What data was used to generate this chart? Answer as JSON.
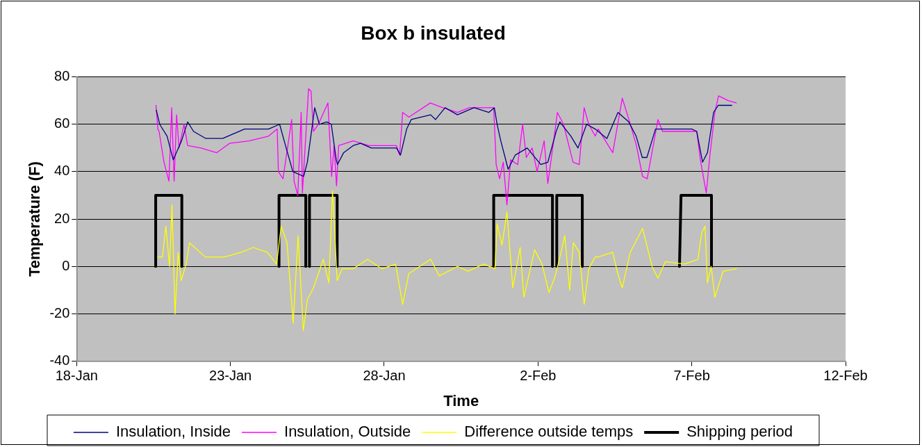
{
  "chart_data": {
    "type": "line",
    "title": "Box b insulated",
    "xlabel": "Time",
    "ylabel": "Temperature (F)",
    "xlim": [
      "--01-18",
      "--02-12"
    ],
    "xticks": [
      {
        "value": "--01-18",
        "label": "18-Jan"
      },
      {
        "value": "--01-23",
        "label": "23-Jan"
      },
      {
        "value": "--01-28",
        "label": "28-Jan"
      },
      {
        "value": "--02-02",
        "label": "2-Feb"
      },
      {
        "value": "--02-07",
        "label": "7-Feb"
      },
      {
        "value": "--02-12",
        "label": "12-Feb"
      }
    ],
    "ylim": [
      -40,
      80
    ],
    "yticks": [
      -40,
      -20,
      0,
      20,
      40,
      60,
      80
    ],
    "grid": "y",
    "legend": "bottom",
    "marker": "none",
    "series": [
      {
        "name": "Insulation, Inside",
        "color": "#000080",
        "x": [
          "--01-20T14:10",
          "--01-20T16:48",
          "--01-20T22:34",
          "--01-21T03:22",
          "--01-21T09:50",
          "--01-21T14:38",
          "--01-21T19:12",
          "--01-22T04:48",
          "--01-22T18:00",
          "--01-23T11:02",
          "--01-24T05:46",
          "--01-24T14:24",
          "--01-24T18:58",
          "--01-25T00:43",
          "--01-25T09:07",
          "--01-25T12:00",
          "--01-25T17:46",
          "--01-25T21:22",
          "--01-26T03:07",
          "--01-26T06:43",
          "--01-26T10:34",
          "--01-26T11:31",
          "--01-26T16:19",
          "--01-26T23:46",
          "--01-27T05:31",
          "--01-27T13:55",
          "--01-28T09:36",
          "--01-28T12:43",
          "--01-28T17:31",
          "--01-28T21:07",
          "--01-29T12:14",
          "--01-29T16:05",
          "--01-29T23:31",
          "--01-30T09:07",
          "--01-30T22:05",
          "--01-31T09:36",
          "--01-31T13:55",
          "--01-31T16:05",
          "--01-31T18:58",
          "--02-01T00:43",
          "--02-01T06:14",
          "--02-01T15:36",
          "--02-02T02:10",
          "--02-02T07:41",
          "--02-02T14:10",
          "--02-02T17:02",
          "--02-03T01:41",
          "--02-03T07:12",
          "--02-03T13:55",
          "--02-03T20:38",
          "--02-04T05:46",
          "--02-04T14:24",
          "--02-04T22:48",
          "--02-05T04:34",
          "--02-05T09:22",
          "--02-05T12:58",
          "--02-05T19:41",
          "--02-07T00:00",
          "--02-07T03:50",
          "--02-07T08:24",
          "--02-07T12:14",
          "--02-07T17:02",
          "--02-07T20:38",
          "--02-08T07:12"
        ],
        "values": [
          66,
          60,
          55,
          45,
          53,
          61,
          57,
          54,
          54,
          58,
          58,
          60,
          51,
          40,
          38,
          44,
          67,
          60,
          61,
          60,
          45,
          43,
          48,
          51,
          52,
          50,
          50,
          47,
          58,
          62,
          64,
          62,
          67,
          64,
          67,
          65,
          67,
          60,
          53,
          41,
          47,
          50,
          43,
          44,
          57,
          61,
          55,
          50,
          60,
          58,
          54,
          65,
          61,
          55,
          46,
          46,
          58,
          58,
          57,
          44,
          48,
          65,
          68,
          68
        ]
      },
      {
        "name": "Insulation, Outside",
        "color": "#ff00ff",
        "x": [
          "--01-20T13:55",
          "--01-20T15:22",
          "--01-20T16:19",
          "--01-20T20:10",
          "--01-21T00:00",
          "--01-21T02:10",
          "--01-21T04:05",
          "--01-21T06:00",
          "--01-21T07:55",
          "--01-21T11:46",
          "--01-21T14:38",
          "--01-22T00:58",
          "--01-22T13:12",
          "--01-22T23:31",
          "--01-23T14:38",
          "--01-24T05:46",
          "--01-24T12:29",
          "--01-24T13:26",
          "--01-24T17:02",
          "--01-24T23:46",
          "--01-25T01:41",
          "--01-25T04:34",
          "--01-25T07:12",
          "--01-25T08:10",
          "--01-25T12:58",
          "--01-25T14:53",
          "--01-25T16:48",
          "--01-25T20:38",
          "--01-26T04:05",
          "--01-26T06:58",
          "--01-26T08:53",
          "--01-26T10:48",
          "--01-26T12:29",
          "--01-26T23:46",
          "--01-27T12:00",
          "--01-28T09:36",
          "--01-28T12:00",
          "--01-28T14:24",
          "--01-28T19:12",
          "--01-29T12:00",
          "--01-29T21:36",
          "--01-30T09:07",
          "--01-30T18:29",
          "--01-31T13:26",
          "--01-31T15:22",
          "--01-31T18:00",
          "--01-31T20:53",
          "--01-31T23:46",
          "--02-01T02:38",
          "--02-01T08:10",
          "--02-01T12:00",
          "--02-01T14:53",
          "--02-01T19:26",
          "--02-01T23:17",
          "--02-02T04:48",
          "--02-02T07:41",
          "--02-02T12:14",
          "--02-02T15:07",
          "--02-02T19:55",
          "--02-03T03:22",
          "--02-03T08:10",
          "--02-03T12:00",
          "--02-03T15:36",
          "--02-03T20:38",
          "--02-03T23:02",
          "--02-04T10:19",
          "--02-04T17:46",
          "--02-04T23:31",
          "--02-05T04:48",
          "--02-05T09:36",
          "--02-05T13:12",
          "--02-05T21:36",
          "--02-06T01:12",
          "--02-07T03:50",
          "--02-07T06:43",
          "--02-07T11:17",
          "--02-07T14:10",
          "--02-07T18:00",
          "--02-07T20:53",
          "--02-08T04:19",
          "--02-08T10:48"
        ],
        "values": [
          68,
          58,
          57,
          44,
          36,
          67,
          36,
          64,
          50,
          60,
          51,
          50,
          48,
          52,
          53,
          55,
          58,
          40,
          37,
          62,
          36,
          30,
          65,
          31,
          75,
          74,
          57,
          60,
          69,
          38,
          51,
          34,
          51,
          53,
          51,
          51,
          47,
          65,
          63,
          69,
          67,
          65,
          67,
          67,
          43,
          37,
          44,
          26,
          45,
          43,
          60,
          46,
          50,
          40,
          53,
          35,
          53,
          65,
          60,
          44,
          43,
          67,
          60,
          55,
          58,
          48,
          71,
          61,
          51,
          38,
          37,
          62,
          57,
          57,
          45,
          31,
          47,
          65,
          72,
          70,
          69
        ]
      },
      {
        "name": "Difference outside temps",
        "color": "#ffff00",
        "x": [
          "--01-20T15:22",
          "--01-20T18:58",
          "--01-20T21:36",
          "--01-21T00:29",
          "--01-21T02:24",
          "--01-21T04:48",
          "--01-21T07:12",
          "--01-21T09:36",
          "--01-21T13:26",
          "--01-21T16:05",
          "--01-22T04:19",
          "--01-22T19:26",
          "--01-23T08:24",
          "--01-23T17:46",
          "--01-24T04:48",
          "--01-24T12:00",
          "--01-24T15:36",
          "--01-24T20:10",
          "--01-25T00:58",
          "--01-25T04:48",
          "--01-25T08:53",
          "--01-25T12:00",
          "--01-25T16:48",
          "--01-26T00:29",
          "--01-26T04:48",
          "--01-26T07:41",
          "--01-26T11:17",
          "--01-26T15:07",
          "--01-26T23:46",
          "--01-27T11:02",
          "--01-27T22:19",
          "--01-28T08:53",
          "--01-28T14:24",
          "--01-28T19:12",
          "--01-29T12:14",
          "--01-29T18:58",
          "--01-30T09:07",
          "--01-30T17:31",
          "--01-31T05:46",
          "--01-31T14:24",
          "--01-31T16:05",
          "--01-31T19:55",
          "--01-31T23:46",
          "--02-01T04:19",
          "--02-01T10:05",
          "--02-01T12:58",
          "--02-01T21:22",
          "--02-02T03:07",
          "--02-02T08:38",
          "--02-02T13:26",
          "--02-02T18:00",
          "--02-02T20:53",
          "--02-03T00:43",
          "--02-03T03:36",
          "--02-03T08:10",
          "--02-03T12:00",
          "--02-03T15:36",
          "--02-03T20:38",
          "--02-03T23:02",
          "--02-04T10:19",
          "--02-04T14:10",
          "--02-04T17:46",
          "--02-05T00:00",
          "--02-05T09:36",
          "--02-05T17:02",
          "--02-05T21:36",
          "--02-06T03:22",
          "--02-06T18:29",
          "--02-07T04:48",
          "--02-07T07:41",
          "--02-07T10:19",
          "--02-07T12:14",
          "--02-07T15:07",
          "--02-07T18:00",
          "--02-08T00:29",
          "--02-08T10:48"
        ],
        "values": [
          4,
          4,
          17,
          0,
          26,
          -20,
          6,
          -6,
          1,
          10,
          4,
          4,
          6,
          8,
          6,
          1,
          17,
          10,
          -24,
          13,
          -27,
          -14,
          -9,
          3,
          -7,
          32,
          -6,
          -1,
          -1,
          3,
          -1,
          1,
          -16,
          -3,
          3,
          -4,
          0,
          -2,
          1,
          -1,
          18,
          9,
          23,
          -9,
          8,
          -13,
          7,
          1,
          -11,
          -4,
          6,
          13,
          -10,
          10,
          6,
          -16,
          -1,
          4,
          4,
          6,
          -3,
          -9,
          6,
          16,
          0,
          -5,
          2,
          1,
          3,
          14,
          17,
          -7,
          0,
          -13,
          -2,
          -1
        ]
      },
      {
        "name": "Shipping period",
        "color": "#000000",
        "x": [
          "--01-20T13:41",
          "--01-20T13:41",
          "--01-21T10:05",
          "--01-21T10:05",
          "--01-23T00:00",
          "--01-24T13:55",
          "--01-24T13:55",
          "--01-25T10:48",
          "--01-25T10:48",
          "--01-25T12:00",
          "--01-25T13:41",
          "--01-25T13:41",
          "--01-26T11:17",
          "--01-26T11:17",
          "--01-29T00:00",
          "--01-31T13:26",
          "--01-31T13:26",
          "--02-02T11:17",
          "--02-02T11:17",
          "--02-02T12:58",
          "--02-02T14:38",
          "--02-02T14:38",
          "--02-03T10:34",
          "--02-03T10:34",
          "--02-05T00:00",
          "--02-06T14:24",
          "--02-06T15:36",
          "--02-07T15:22",
          "--02-07T15:22"
        ],
        "values": [
          0,
          30,
          30,
          0,
          null,
          0,
          30,
          30,
          0,
          null,
          0,
          30,
          30,
          0,
          null,
          0,
          30,
          30,
          0,
          null,
          0,
          30,
          30,
          0,
          null,
          0,
          30,
          30,
          0
        ]
      }
    ]
  }
}
